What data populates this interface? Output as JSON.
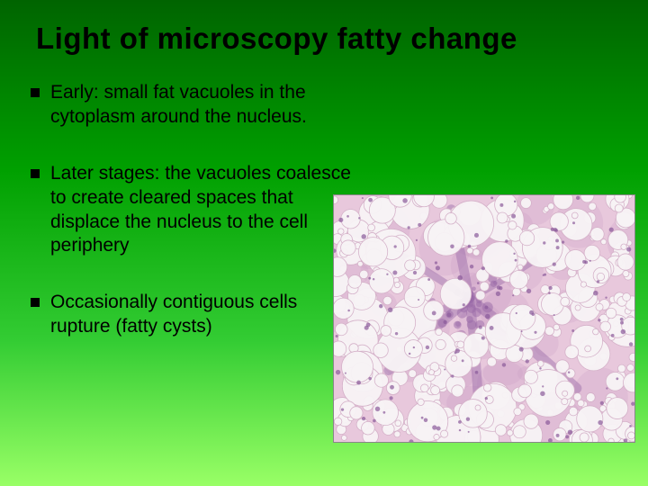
{
  "title": "Light of microscopy fatty change",
  "bullets": [
    "Early: small fat vacuoles in the cytoplasm around the nucleus.",
    "Later stages: the vacuoles coalesce to create cleared spaces that displace the nucleus to the cell periphery",
    "Occasionally contiguous cells rupture (fatty cysts)"
  ],
  "histology": {
    "background": "#e8c8dc",
    "stroma": "#c89ac2",
    "vacuole_fill": "#f8f4f6",
    "vacuole_stroke": "#d4b0c8",
    "nucleus": "#8a5a9a",
    "fibrosis": "#9a6aa8"
  },
  "style": {
    "title_fontsize": 33,
    "body_fontsize": 21,
    "bullet_color": "#000000",
    "gradient_top": "#006400",
    "gradient_bottom": "#99ff66"
  }
}
